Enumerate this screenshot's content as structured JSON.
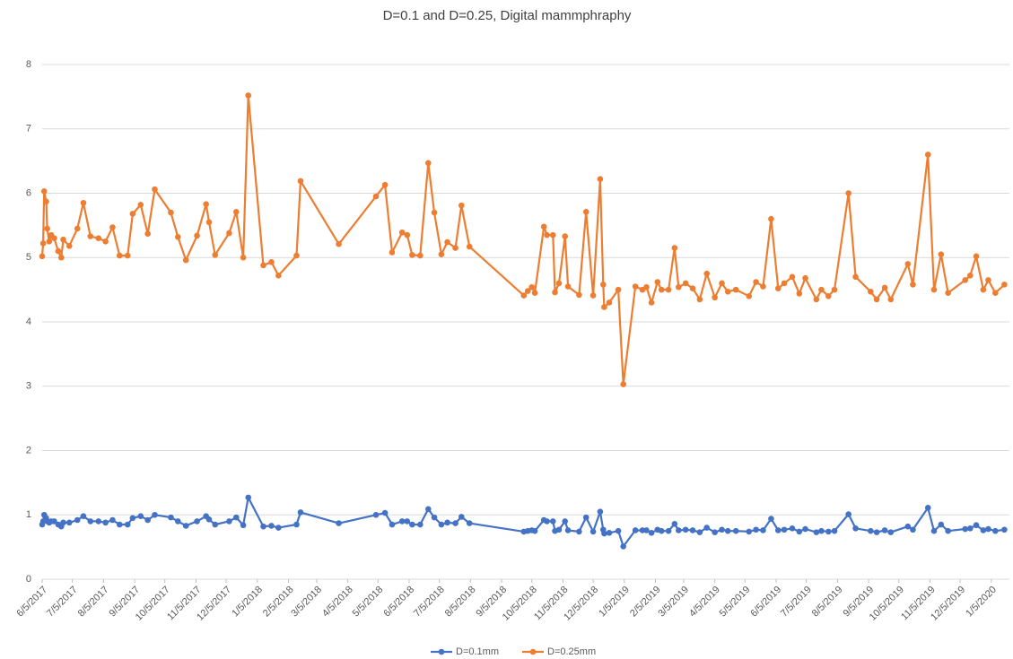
{
  "chart_data": {
    "type": "line",
    "title": "D=0.1 and D=0.25, Digital mammphraphy",
    "x": [
      "2017-06-05",
      "2017-06-06",
      "2017-06-07",
      "2017-06-09",
      "2017-06-10",
      "2017-06-12",
      "2017-06-14",
      "2017-06-17",
      "2017-06-21",
      "2017-06-24",
      "2017-06-26",
      "2017-07-02",
      "2017-07-10",
      "2017-07-16",
      "2017-07-23",
      "2017-07-31",
      "2017-08-07",
      "2017-08-14",
      "2017-08-21",
      "2017-08-29",
      "2017-09-03",
      "2017-09-11",
      "2017-09-18",
      "2017-09-25",
      "2017-10-11",
      "2017-10-18",
      "2017-10-26",
      "2017-11-06",
      "2017-11-15",
      "2017-11-18",
      "2017-11-24",
      "2017-12-08",
      "2017-12-15",
      "2017-12-22",
      "2017-12-27",
      "2018-01-11",
      "2018-01-19",
      "2018-01-26",
      "2018-02-13",
      "2018-02-17",
      "2018-03-27",
      "2018-05-03",
      "2018-05-12",
      "2018-05-19",
      "2018-05-29",
      "2018-06-03",
      "2018-06-08",
      "2018-06-16",
      "2018-06-24",
      "2018-06-30",
      "2018-07-07",
      "2018-07-13",
      "2018-07-21",
      "2018-07-27",
      "2018-08-04",
      "2018-09-27",
      "2018-10-01",
      "2018-10-05",
      "2018-10-08",
      "2018-10-17",
      "2018-10-20",
      "2018-10-26",
      "2018-10-28",
      "2018-11-01",
      "2018-11-07",
      "2018-11-10",
      "2018-11-21",
      "2018-11-28",
      "2018-12-05",
      "2018-12-12",
      "2018-12-15",
      "2018-12-16",
      "2018-12-21",
      "2018-12-30",
      "2019-01-04",
      "2019-01-16",
      "2019-01-23",
      "2019-01-27",
      "2019-02-01",
      "2019-02-07",
      "2019-02-11",
      "2019-02-18",
      "2019-02-24",
      "2019-02-28",
      "2019-03-07",
      "2019-03-14",
      "2019-03-21",
      "2019-03-28",
      "2019-04-05",
      "2019-04-12",
      "2019-04-18",
      "2019-04-26",
      "2019-05-09",
      "2019-05-16",
      "2019-05-23",
      "2019-05-31",
      "2019-06-07",
      "2019-06-13",
      "2019-06-21",
      "2019-06-28",
      "2019-07-04",
      "2019-07-15",
      "2019-07-20",
      "2019-07-27",
      "2019-08-02",
      "2019-08-16",
      "2019-08-23",
      "2019-09-07",
      "2019-09-13",
      "2019-09-21",
      "2019-09-27",
      "2019-10-14",
      "2019-10-19",
      "2019-11-03",
      "2019-11-09",
      "2019-11-16",
      "2019-11-23",
      "2019-12-10",
      "2019-12-15",
      "2019-12-21",
      "2019-12-28",
      "2020-01-02",
      "2020-01-09",
      "2020-01-18"
    ],
    "series": [
      {
        "name": "D=0.1mm",
        "color": "#4472c4",
        "values": [
          0.85,
          0.9,
          1.0,
          0.95,
          0.9,
          0.88,
          0.9,
          0.9,
          0.85,
          0.82,
          0.88,
          0.88,
          0.92,
          0.98,
          0.9,
          0.9,
          0.88,
          0.92,
          0.85,
          0.85,
          0.95,
          0.98,
          0.92,
          1.0,
          0.96,
          0.9,
          0.83,
          0.9,
          0.98,
          0.93,
          0.85,
          0.9,
          0.96,
          0.84,
          1.27,
          0.82,
          0.83,
          0.8,
          0.85,
          1.04,
          0.87,
          1.0,
          1.03,
          0.85,
          0.9,
          0.9,
          0.85,
          0.85,
          1.09,
          0.96,
          0.85,
          0.88,
          0.87,
          0.97,
          0.87,
          0.74,
          0.75,
          0.76,
          0.75,
          0.92,
          0.9,
          0.9,
          0.75,
          0.77,
          0.9,
          0.76,
          0.74,
          0.96,
          0.74,
          1.05,
          0.77,
          0.71,
          0.72,
          0.75,
          0.51,
          0.76,
          0.76,
          0.76,
          0.72,
          0.77,
          0.75,
          0.75,
          0.86,
          0.76,
          0.77,
          0.76,
          0.73,
          0.8,
          0.73,
          0.77,
          0.75,
          0.75,
          0.74,
          0.77,
          0.76,
          0.94,
          0.76,
          0.77,
          0.79,
          0.74,
          0.78,
          0.73,
          0.75,
          0.74,
          0.75,
          1.01,
          0.79,
          0.75,
          0.73,
          0.76,
          0.73,
          0.82,
          0.77,
          1.11,
          0.75,
          0.85,
          0.75,
          0.78,
          0.79,
          0.84,
          0.76,
          0.78,
          0.75,
          0.77
        ]
      },
      {
        "name": "D=0.25mm",
        "color": "#ed7d31",
        "values": [
          5.02,
          5.22,
          6.03,
          5.87,
          5.45,
          5.25,
          5.35,
          5.3,
          5.1,
          5.0,
          5.28,
          5.18,
          5.45,
          5.85,
          5.33,
          5.3,
          5.25,
          5.47,
          5.03,
          5.03,
          5.68,
          5.82,
          5.37,
          6.06,
          5.7,
          5.32,
          4.96,
          5.34,
          5.83,
          5.55,
          5.04,
          5.38,
          5.71,
          5.0,
          7.52,
          4.88,
          4.93,
          4.72,
          5.03,
          6.19,
          5.21,
          5.95,
          6.13,
          5.08,
          5.39,
          5.35,
          5.04,
          5.03,
          6.47,
          5.7,
          5.05,
          5.24,
          5.15,
          5.81,
          5.17,
          4.41,
          4.48,
          4.54,
          4.45,
          5.48,
          5.35,
          5.35,
          4.46,
          4.6,
          5.33,
          4.55,
          4.42,
          5.71,
          4.41,
          6.22,
          4.58,
          4.23,
          4.3,
          4.5,
          3.03,
          4.55,
          4.5,
          4.54,
          4.3,
          4.62,
          4.5,
          4.5,
          5.15,
          4.54,
          4.6,
          4.52,
          4.35,
          4.75,
          4.38,
          4.6,
          4.47,
          4.5,
          4.4,
          4.62,
          4.55,
          5.6,
          4.52,
          4.6,
          4.7,
          4.44,
          4.68,
          4.35,
          4.5,
          4.4,
          4.5,
          6.0,
          4.7,
          4.47,
          4.35,
          4.53,
          4.35,
          4.9,
          4.58,
          6.6,
          4.5,
          5.05,
          4.45,
          4.65,
          4.72,
          5.02,
          4.5,
          4.65,
          4.45,
          4.58
        ]
      }
    ],
    "xlim": [
      "2017-06-05",
      "2020-01-23"
    ],
    "xticks": [
      {
        "value": "2017-06-05",
        "label": "6/5/2017"
      },
      {
        "value": "2017-07-05",
        "label": "7/5/2017"
      },
      {
        "value": "2017-08-05",
        "label": "8/5/2017"
      },
      {
        "value": "2017-09-05",
        "label": "9/5/2017"
      },
      {
        "value": "2017-10-05",
        "label": "10/5/2017"
      },
      {
        "value": "2017-11-05",
        "label": "11/5/2017"
      },
      {
        "value": "2017-12-05",
        "label": "12/5/2017"
      },
      {
        "value": "2018-01-05",
        "label": "1/5/2018"
      },
      {
        "value": "2018-02-05",
        "label": "2/5/2018"
      },
      {
        "value": "2018-03-05",
        "label": "3/5/2018"
      },
      {
        "value": "2018-04-05",
        "label": "4/5/2018"
      },
      {
        "value": "2018-05-05",
        "label": "5/5/2018"
      },
      {
        "value": "2018-06-05",
        "label": "6/5/2018"
      },
      {
        "value": "2018-07-05",
        "label": "7/5/2018"
      },
      {
        "value": "2018-08-05",
        "label": "8/5/2018"
      },
      {
        "value": "2018-09-05",
        "label": "9/5/2018"
      },
      {
        "value": "2018-10-05",
        "label": "10/5/2018"
      },
      {
        "value": "2018-11-05",
        "label": "11/5/2018"
      },
      {
        "value": "2018-12-05",
        "label": "12/5/2018"
      },
      {
        "value": "2019-01-05",
        "label": "1/5/2019"
      },
      {
        "value": "2019-02-05",
        "label": "2/5/2019"
      },
      {
        "value": "2019-03-05",
        "label": "3/5/2019"
      },
      {
        "value": "2019-04-05",
        "label": "4/5/2019"
      },
      {
        "value": "2019-05-05",
        "label": "5/5/2019"
      },
      {
        "value": "2019-06-05",
        "label": "6/5/2019"
      },
      {
        "value": "2019-07-05",
        "label": "7/5/2019"
      },
      {
        "value": "2019-08-05",
        "label": "8/5/2019"
      },
      {
        "value": "2019-09-05",
        "label": "9/5/2019"
      },
      {
        "value": "2019-10-05",
        "label": "10/5/2019"
      },
      {
        "value": "2019-11-05",
        "label": "11/5/2019"
      },
      {
        "value": "2019-12-05",
        "label": "12/5/2019"
      },
      {
        "value": "2020-01-05",
        "label": "1/5/2020"
      }
    ],
    "ylim": [
      0,
      8
    ],
    "yticks": [
      0,
      1,
      2,
      3,
      4,
      5,
      6,
      7,
      8
    ],
    "grid": true,
    "legend": "bottom"
  }
}
